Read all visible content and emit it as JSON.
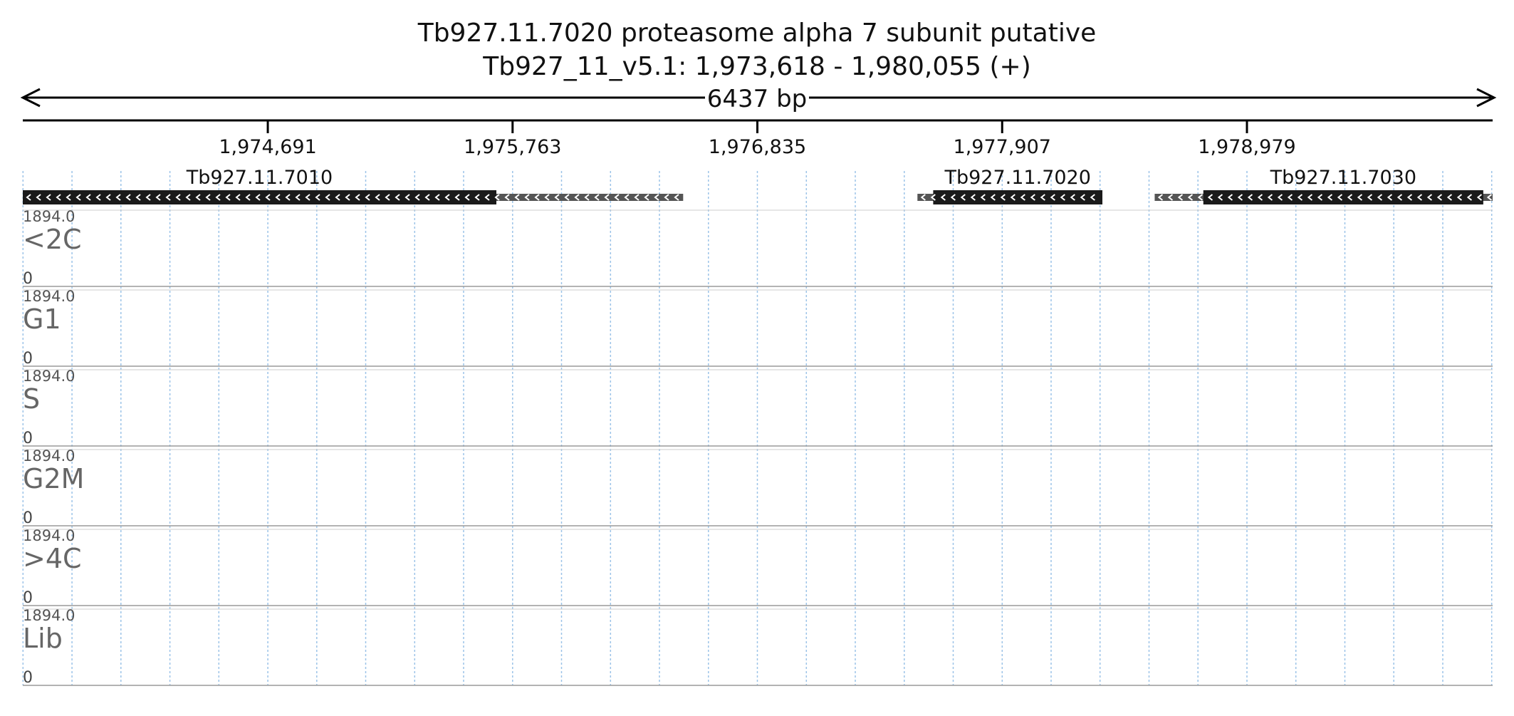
{
  "chart_data": {
    "type": "area",
    "title_line1": "Tb927.11.7020  proteasome alpha 7 subunit  putative",
    "title_line2": "Tb927_11_v5.1: 1,973,618 - 1,980,055 (+)",
    "span_label": "6437 bp",
    "genome_range": [
      1973618,
      1980055
    ],
    "ticks": [
      {
        "pos": 1974691,
        "label": "1,974,691"
      },
      {
        "pos": 1975763,
        "label": "1,975,763"
      },
      {
        "pos": 1976835,
        "label": "1,976,835"
      },
      {
        "pos": 1977907,
        "label": "1,977,907"
      },
      {
        "pos": 1978979,
        "label": "1,978,979"
      }
    ],
    "genes": [
      {
        "name": "Tb927.11.7010",
        "utr": [
          1975692,
          1976510
        ],
        "cds": [
          1973618,
          1975692
        ],
        "strand": "-"
      },
      {
        "name": "Tb927.11.7020",
        "utr": [
          1977536,
          1978192
        ],
        "cds": [
          1977605,
          1978346
        ],
        "strand": "-"
      },
      {
        "name": "Tb927.11.7030",
        "utr": [
          1978575,
          1980055
        ],
        "cds": [
          1978788,
          1980014
        ],
        "strand": "-"
      }
    ],
    "y_max_label": "1894.0",
    "y_min_label": "0",
    "y_range": [
      0,
      1894
    ],
    "x_step_bp": 40,
    "series": [
      {
        "name": "<2C",
        "color": "#fab460",
        "values": [
          0,
          0,
          0,
          0,
          0,
          0,
          0,
          0,
          0,
          0,
          0,
          0,
          0,
          0,
          0,
          0,
          0,
          0,
          0,
          0,
          0,
          0,
          0,
          0,
          0,
          0,
          0,
          0,
          0,
          0,
          0,
          0,
          0,
          0,
          0,
          0,
          0,
          0,
          0,
          0,
          0,
          0,
          0,
          0,
          0,
          0,
          0,
          0,
          0,
          0,
          0,
          0,
          0,
          0,
          0,
          0,
          0,
          0,
          0,
          0,
          0,
          0,
          0,
          0,
          0,
          0,
          0,
          0,
          0,
          0,
          0,
          0,
          0,
          0,
          0,
          0,
          0,
          0,
          0,
          0,
          0,
          0,
          0,
          0,
          0,
          0,
          0,
          0,
          0,
          0,
          0,
          0,
          0,
          0,
          0,
          0,
          0,
          0,
          0,
          0,
          0,
          0,
          0,
          0,
          0,
          0,
          0,
          0,
          0,
          0,
          0,
          0,
          0,
          0,
          0,
          0,
          0,
          0,
          0,
          0,
          0,
          0,
          0,
          0,
          0,
          0,
          0,
          0,
          0,
          0,
          0,
          0,
          0,
          0,
          0,
          0,
          0,
          0,
          0,
          0,
          0,
          0,
          0,
          0,
          0,
          0,
          0,
          0,
          0,
          0,
          0,
          0,
          0,
          0,
          0,
          0,
          0,
          0,
          0,
          0,
          0
        ]
      },
      {
        "name": "G1",
        "color": "#c495c9",
        "values": [
          0,
          0,
          0,
          0,
          0,
          0,
          0,
          0,
          0,
          0,
          0,
          0,
          0,
          0,
          0,
          0,
          0,
          0,
          0,
          0,
          0,
          0,
          0,
          0,
          0,
          0,
          0,
          0,
          0,
          0,
          0,
          0,
          0,
          0,
          0,
          0,
          0,
          0,
          0,
          0,
          0,
          0,
          0,
          0,
          0,
          0,
          0,
          0,
          0,
          0,
          0,
          0,
          0,
          0,
          0,
          0,
          0,
          0,
          0,
          0,
          0,
          0,
          0,
          0,
          0,
          0,
          0,
          0,
          0,
          0,
          0,
          0,
          0,
          0,
          0,
          0,
          0,
          0,
          0,
          0,
          0,
          0,
          0,
          0,
          0,
          0,
          0,
          0,
          0,
          0,
          0,
          0,
          0,
          0,
          0,
          0,
          0,
          0,
          0,
          0,
          0,
          0,
          0,
          0,
          0,
          0,
          0,
          0,
          0,
          0,
          0,
          0,
          0,
          0,
          0,
          0,
          0,
          0,
          0,
          0,
          0,
          0,
          0,
          0,
          0,
          0,
          0,
          0,
          0,
          0,
          0,
          0,
          0,
          0,
          0,
          0,
          0,
          0,
          0,
          0,
          0,
          0,
          0,
          0,
          0,
          0,
          0,
          0,
          0,
          0,
          0,
          0,
          0,
          0,
          0,
          0,
          0,
          0,
          0,
          0,
          0
        ]
      },
      {
        "name": "S",
        "color": "#84cb84",
        "values": [
          0,
          0,
          0,
          0,
          0,
          0,
          0,
          0,
          0,
          0,
          0,
          0,
          0,
          0,
          0,
          0,
          0,
          0,
          0,
          0,
          0,
          0,
          0,
          0,
          0,
          0,
          0,
          0,
          0,
          0,
          0,
          0,
          0,
          0,
          0,
          0,
          0,
          0,
          0,
          0,
          0,
          0,
          0,
          0,
          0,
          0,
          0,
          0,
          0,
          0,
          0,
          0,
          0,
          0,
          0,
          0,
          0,
          0,
          0,
          0,
          0,
          0,
          0,
          0,
          0,
          0,
          0,
          0,
          0,
          0,
          0,
          0,
          0,
          0,
          0,
          0,
          0,
          0,
          0,
          0,
          0,
          0,
          0,
          0,
          0,
          0,
          0,
          0,
          0,
          0,
          0,
          0,
          0,
          0,
          0,
          0,
          0,
          0,
          0,
          0,
          0,
          0,
          0,
          0,
          0,
          0,
          0,
          0,
          0,
          0,
          0,
          0,
          0,
          0,
          0,
          0,
          0,
          0,
          0,
          0,
          0,
          0,
          0,
          0,
          0,
          0,
          0,
          0,
          0,
          0,
          0,
          0,
          0,
          0,
          0,
          0,
          0,
          0,
          0,
          0,
          0,
          0,
          0,
          0,
          0,
          0,
          0,
          0,
          0,
          0,
          0,
          0,
          0,
          0,
          0,
          0,
          0,
          0,
          0,
          0,
          0
        ]
      },
      {
        "name": "G2M",
        "color": "#7db7e1",
        "values": [
          0,
          0,
          0,
          0,
          0,
          0,
          0,
          0,
          0,
          0,
          0,
          0,
          0,
          0,
          0,
          0,
          0,
          0,
          0,
          0,
          0,
          0,
          0,
          0,
          0,
          0,
          0,
          0,
          0,
          0,
          0,
          0,
          0,
          0,
          0,
          0,
          0,
          0,
          0,
          0,
          0,
          0,
          0,
          0,
          0,
          0,
          0,
          0,
          0,
          0,
          0,
          0,
          0,
          0,
          0,
          0,
          0,
          0,
          0,
          0,
          0,
          0,
          0,
          0,
          0,
          0,
          0,
          0,
          0,
          0,
          0,
          0,
          0,
          0,
          0,
          0,
          0,
          0,
          0,
          0,
          0,
          0,
          0,
          0,
          0,
          0,
          0,
          0,
          0,
          0,
          0,
          0,
          0,
          0,
          0,
          0,
          0,
          0,
          0,
          0,
          0,
          0,
          0,
          0,
          0,
          0,
          0,
          0,
          0,
          0,
          0,
          0,
          0,
          0,
          0,
          0,
          0,
          0,
          0,
          0,
          0,
          0,
          0,
          0,
          0,
          0,
          0,
          0,
          0,
          0,
          0,
          0,
          0,
          0,
          0,
          0,
          0,
          0,
          0,
          0,
          0,
          0,
          0,
          0,
          0,
          0,
          0,
          0,
          0,
          0,
          0,
          0,
          0,
          0,
          0,
          0,
          0,
          0,
          0,
          0,
          0
        ]
      },
      {
        "name": ">4C",
        "color": "#f59dc8",
        "values": [
          0,
          0,
          0,
          0,
          0,
          0,
          0,
          0,
          0,
          0,
          0,
          0,
          0,
          0,
          0,
          0,
          0,
          0,
          0,
          0,
          0,
          0,
          0,
          0,
          0,
          0,
          0,
          0,
          0,
          0,
          0,
          0,
          0,
          0,
          0,
          0,
          0,
          0,
          0,
          0,
          0,
          0,
          0,
          0,
          0,
          0,
          0,
          0,
          0,
          0,
          0,
          0,
          0,
          0,
          0,
          0,
          0,
          0,
          0,
          0,
          0,
          0,
          0,
          0,
          0,
          0,
          0,
          0,
          0,
          0,
          0,
          0,
          0,
          0,
          0,
          0,
          0,
          0,
          0,
          0,
          0,
          0,
          0,
          0,
          0,
          0,
          0,
          0,
          0,
          0,
          0,
          0,
          0,
          0,
          0,
          0,
          0,
          0,
          0,
          0,
          0,
          0,
          0,
          0,
          0,
          0,
          0,
          0,
          0,
          0,
          0,
          0,
          0,
          0,
          0,
          0,
          0,
          0,
          0,
          0,
          0,
          0,
          0,
          0,
          0,
          0,
          0,
          0,
          0,
          0,
          0,
          0,
          0,
          0,
          0,
          0,
          0,
          0,
          0,
          0,
          0,
          0,
          0,
          0,
          0,
          0,
          0,
          0,
          0,
          0,
          0,
          0,
          0,
          0,
          0,
          0,
          0,
          0,
          0,
          0,
          0
        ]
      },
      {
        "name": "Lib",
        "color": "#e4d96b",
        "values": [
          0,
          0,
          0,
          0,
          0,
          0,
          0,
          0,
          0,
          0,
          0,
          0,
          0,
          0,
          0,
          0,
          0,
          0,
          0,
          0,
          0,
          0,
          0,
          0,
          0,
          0,
          0,
          0,
          0,
          0,
          0,
          0,
          0,
          0,
          0,
          0,
          0,
          0,
          0,
          0,
          0,
          0,
          0,
          0,
          0,
          0,
          0,
          0,
          0,
          0,
          0,
          0,
          0,
          0,
          0,
          0,
          0,
          0,
          0,
          0,
          0,
          0,
          0,
          0,
          0,
          0,
          0,
          0,
          0,
          0,
          0,
          0,
          0,
          0,
          0,
          0,
          0,
          0,
          0,
          0,
          0,
          0,
          0,
          0,
          0,
          0,
          0,
          0,
          0,
          0,
          0,
          0,
          0,
          0,
          0,
          0,
          0,
          0,
          0,
          0,
          0,
          0,
          0,
          0,
          0,
          0,
          0,
          0,
          0,
          0,
          0,
          0,
          0,
          0,
          0,
          0,
          0,
          0,
          0,
          0,
          0,
          0,
          0,
          0,
          0,
          0,
          0,
          0,
          0,
          0,
          0,
          0,
          0,
          0,
          0,
          0,
          0,
          0,
          0,
          0,
          0,
          0,
          0,
          0,
          0,
          0,
          0,
          0,
          0,
          0,
          0,
          0,
          0,
          0,
          0,
          0,
          0,
          0,
          0,
          0,
          0
        ]
      }
    ]
  }
}
